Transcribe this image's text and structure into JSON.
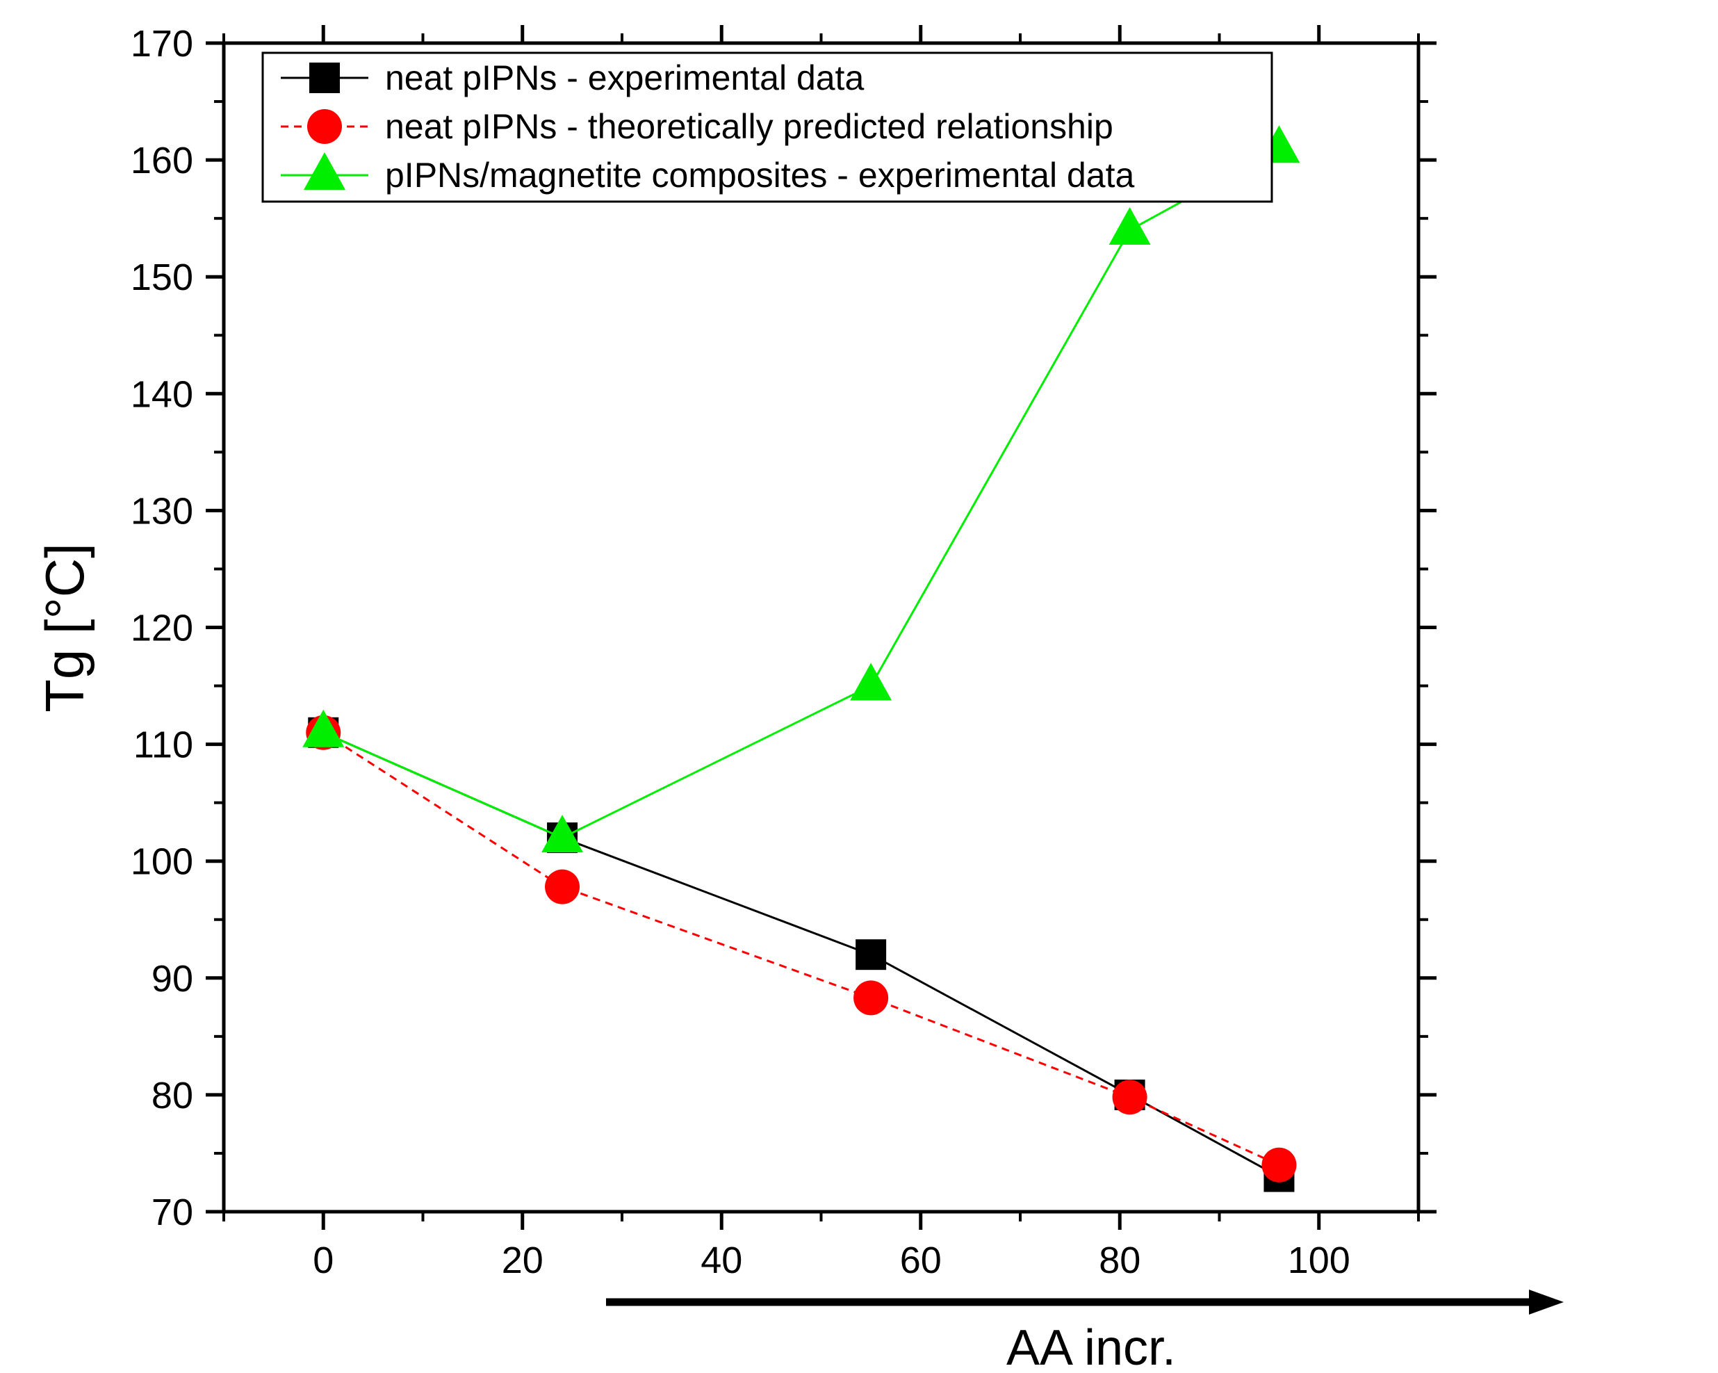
{
  "chart_data": {
    "type": "line",
    "title": "",
    "xlabel": "AA incr.",
    "ylabel": "Tg [°C]",
    "xlim": [
      -10,
      110
    ],
    "ylim": [
      70,
      170
    ],
    "xticks": [
      0,
      20,
      40,
      60,
      80,
      100
    ],
    "yticks": [
      70,
      80,
      90,
      100,
      110,
      120,
      130,
      140,
      150,
      160,
      170
    ],
    "legend_position": "top-left",
    "series": [
      {
        "name": "neat pIPNs - experimental data",
        "marker": "square",
        "line_style": "solid",
        "color": "#000000",
        "x": [
          0,
          24,
          55,
          81,
          96
        ],
        "y": [
          111,
          102,
          92,
          80,
          73
        ]
      },
      {
        "name": "neat pIPNs - theoretically predicted relationship",
        "marker": "circle",
        "line_style": "dashed",
        "color": "#ff0000",
        "x": [
          0,
          24,
          55,
          81,
          96
        ],
        "y": [
          111,
          97.8,
          88.3,
          79.8,
          74
        ]
      },
      {
        "name": "pIPNs/magnetite composites - experimental data",
        "marker": "triangle",
        "line_style": "solid",
        "color": "#00ee00",
        "x": [
          0,
          24,
          55,
          81,
          96
        ],
        "y": [
          111,
          102,
          115,
          154,
          161
        ]
      }
    ]
  }
}
